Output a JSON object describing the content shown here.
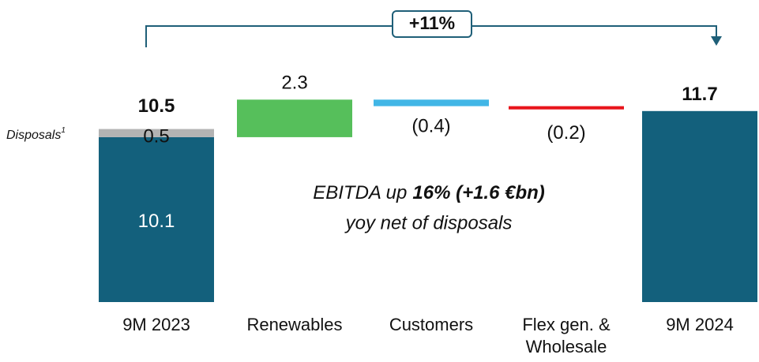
{
  "chart_data": {
    "type": "waterfall",
    "categories": [
      "9M 2023",
      "Renewables",
      "Customers",
      [
        "Flex gen. &",
        "Wholesale"
      ],
      "9M 2024"
    ],
    "values": [
      10.1,
      2.3,
      -0.4,
      -0.2,
      11.7
    ],
    "value_labels": [
      "10.1",
      "2.3",
      "(0.4)",
      "(0.2)",
      "11.7"
    ],
    "colors": [
      "#13607c",
      "#56bf5b",
      "#41b6e6",
      "#e8141b",
      "#13607c"
    ],
    "disposals": {
      "label": "Disposals",
      "footnote": "1",
      "value": 0.5,
      "color": "#b3b3b3"
    },
    "start_total": 10.5,
    "growth_label": "+11%",
    "annotation": {
      "line1": "EBITDA up",
      "line1_bold": "16% (+1.6 €bn)",
      "line2": "yoy net of disposals"
    },
    "ylim": [
      0,
      13.5
    ]
  }
}
